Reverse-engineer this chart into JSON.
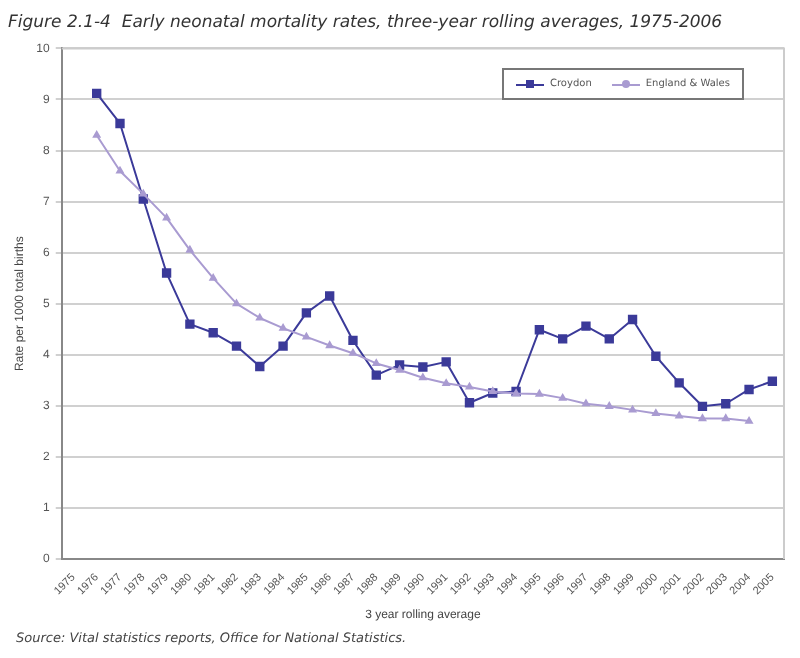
{
  "chart_data": {
    "type": "line",
    "title": "Figure 2.1-4  Early neonatal mortality rates, three-year rolling averages, 1975-2006",
    "xlabel": "3 year rolling average",
    "ylabel": "Rate per 1000 total births",
    "categories": [
      "1975",
      "1976",
      "1977",
      "1978",
      "1979",
      "1980",
      "1981",
      "1982",
      "1983",
      "1984",
      "1985",
      "1986",
      "1987",
      "1988",
      "1989",
      "1990",
      "1991",
      "1992",
      "1993",
      "1994",
      "1995",
      "1996",
      "1997",
      "1998",
      "1999",
      "2000",
      "2001",
      "2002",
      "2003",
      "2004",
      "2005"
    ],
    "series": [
      {
        "name": "Croydon",
        "color": "#3b3a99",
        "marker": "square",
        "values": [
          null,
          9.12,
          8.53,
          7.05,
          5.6,
          4.6,
          4.43,
          4.17,
          3.77,
          4.17,
          4.82,
          5.15,
          4.28,
          3.6,
          3.8,
          3.76,
          3.86,
          3.06,
          3.25,
          3.28,
          4.49,
          4.31,
          4.56,
          4.31,
          4.69,
          3.97,
          3.45,
          2.99,
          3.04,
          3.32,
          3.48
        ]
      },
      {
        "name": "England & Wales",
        "color": "#a99bd1",
        "marker": "triangle",
        "values": [
          null,
          8.3,
          7.6,
          7.15,
          6.68,
          6.05,
          5.5,
          5.0,
          4.72,
          4.52,
          4.35,
          4.18,
          4.03,
          3.83,
          3.7,
          3.55,
          3.44,
          3.37,
          3.28,
          3.24,
          3.23,
          3.15,
          3.04,
          2.99,
          2.92,
          2.85,
          2.8,
          2.75,
          2.75,
          2.7,
          null
        ]
      }
    ],
    "ylim": [
      0,
      10
    ],
    "yticks": [
      0,
      1,
      2,
      3,
      4,
      5,
      6,
      7,
      8,
      9,
      10
    ],
    "grid": "y",
    "legend": "top right",
    "line_style": "solid",
    "annotations": [
      "Source: Vital statistics reports, Office for National Statistics."
    ]
  }
}
